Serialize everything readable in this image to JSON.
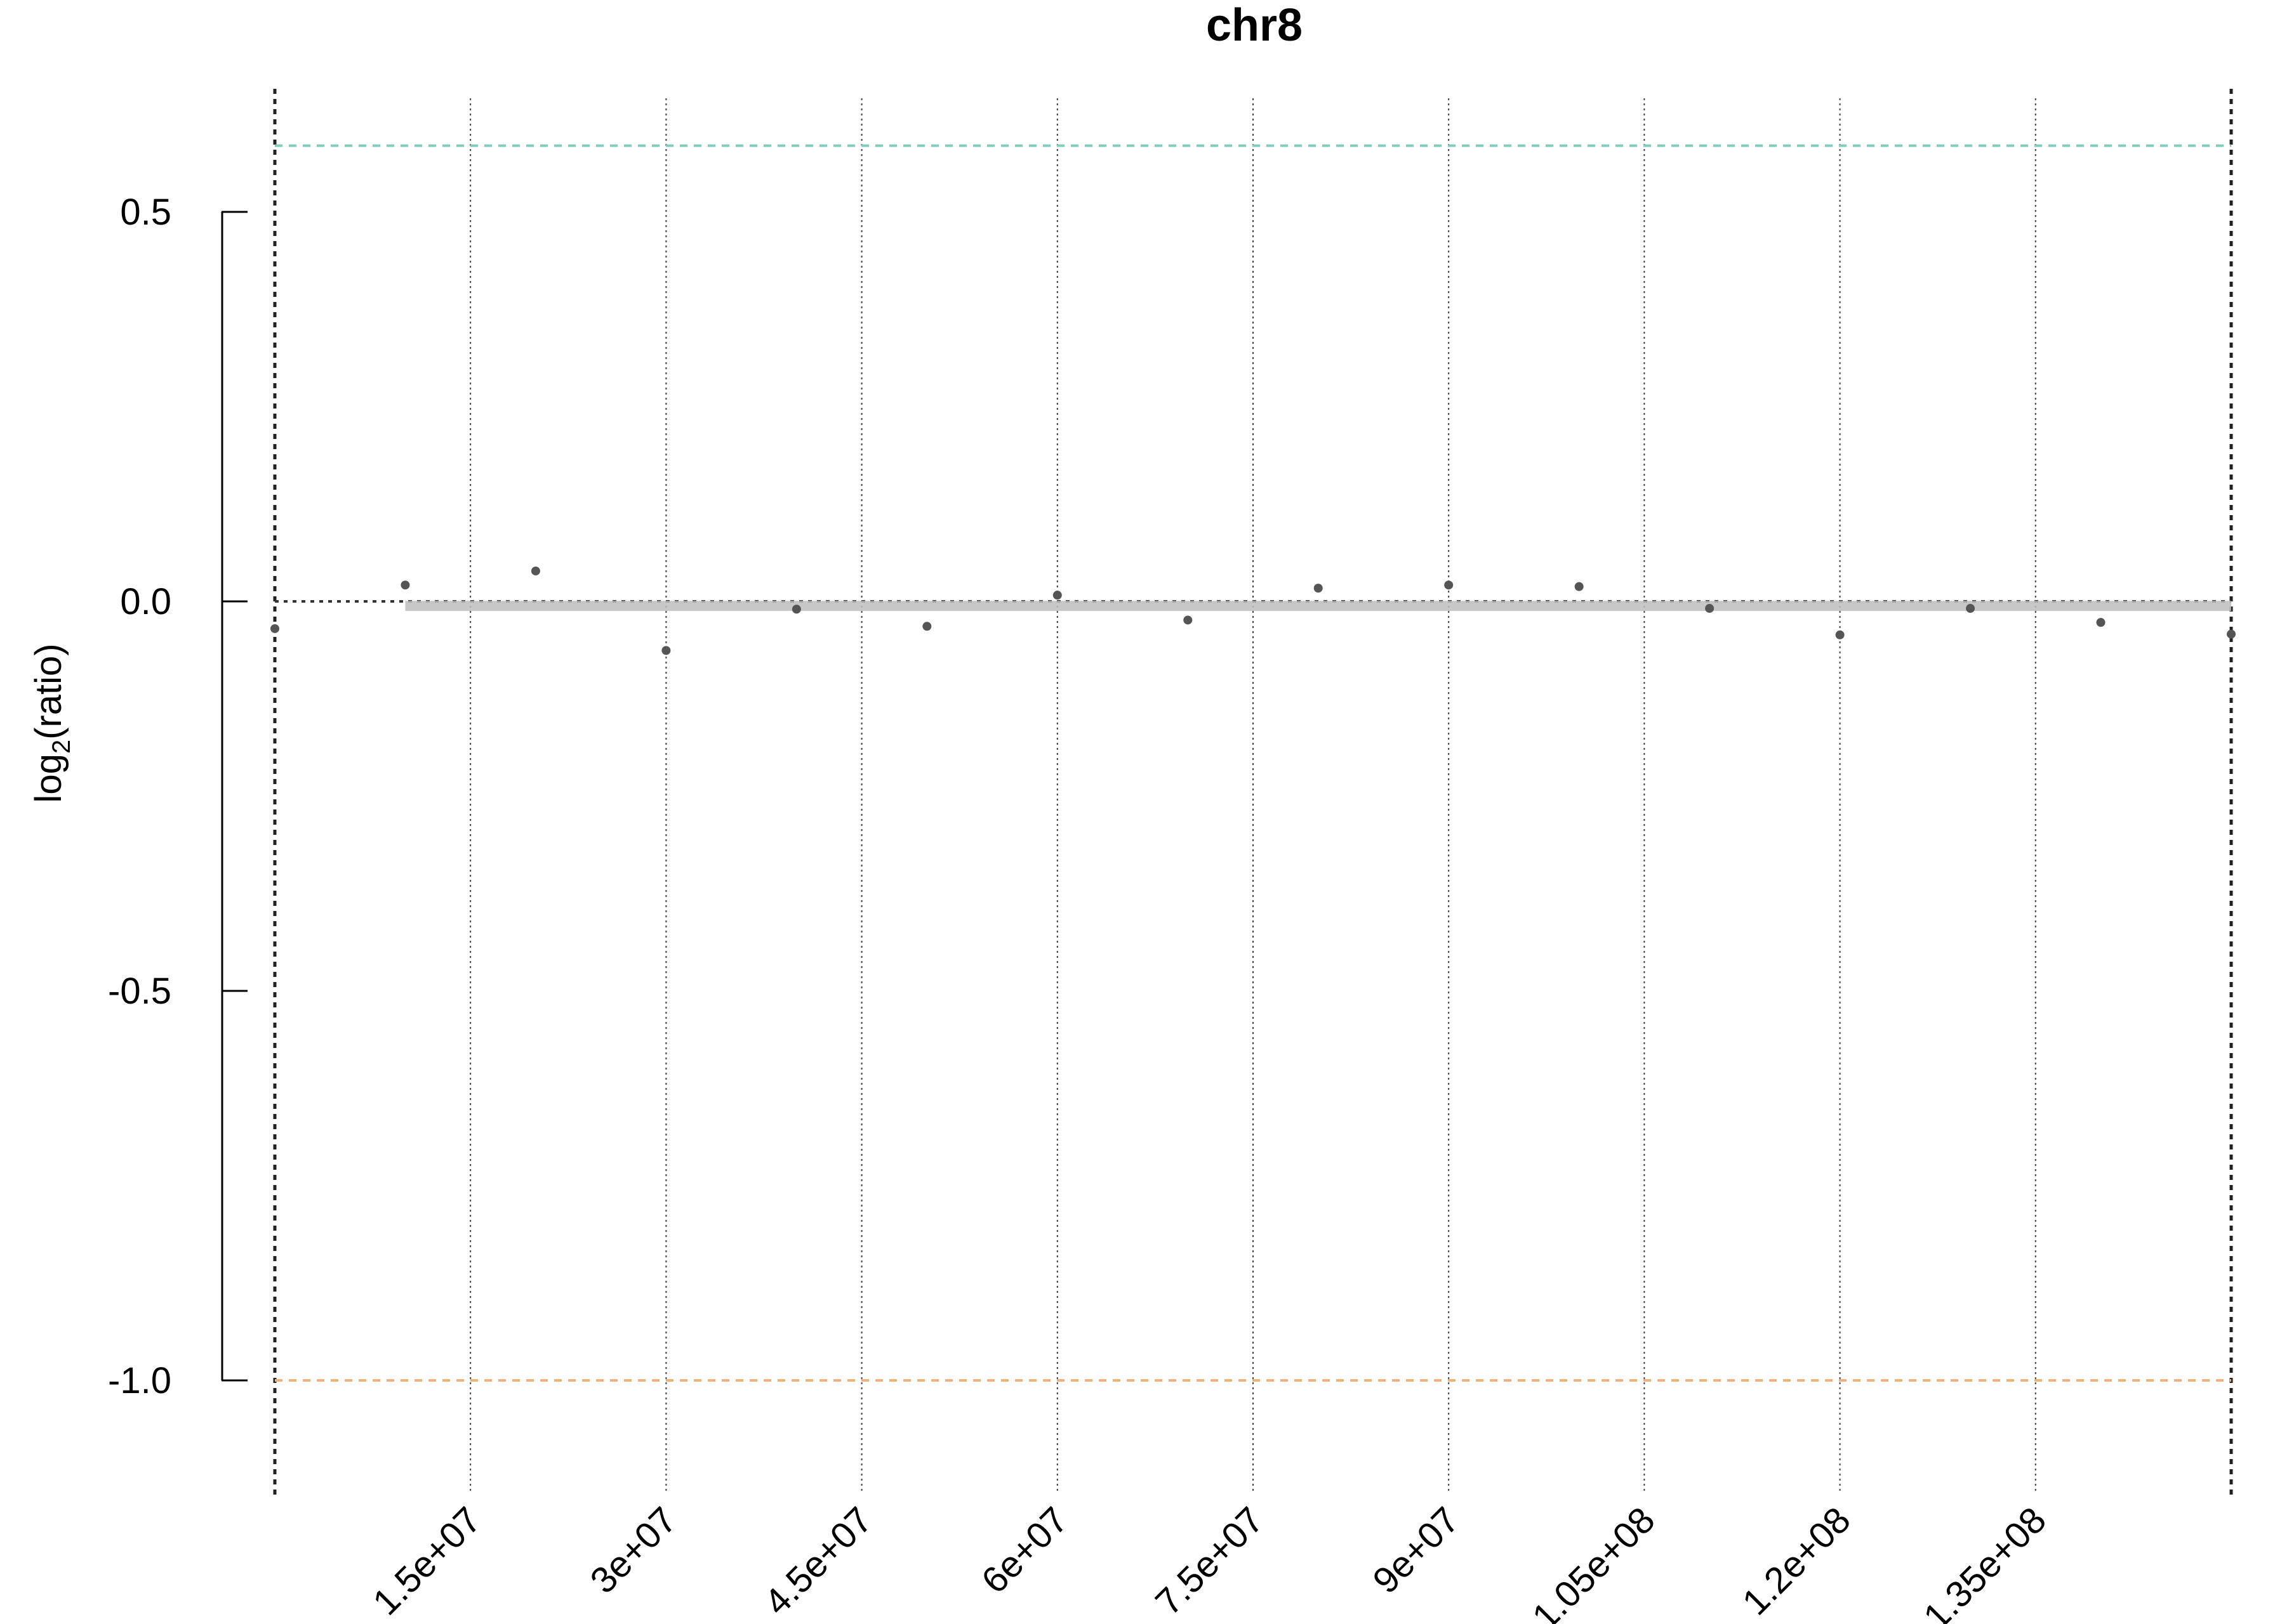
{
  "chart_data": {
    "type": "scatter",
    "title": "chr8",
    "xlabel": "",
    "ylabel": {
      "prefix": "log",
      "subscript": "2",
      "suffix": "(ratio)"
    },
    "xlim": [
      0,
      150000000
    ],
    "ylim": [
      -1.15,
      0.65
    ],
    "x_ticks": [
      {
        "value": 15000000,
        "label": "1.5e+07"
      },
      {
        "value": 30000000,
        "label": "3e+07"
      },
      {
        "value": 45000000,
        "label": "4.5e+07"
      },
      {
        "value": 60000000,
        "label": "6e+07"
      },
      {
        "value": 75000000,
        "label": "7.5e+07"
      },
      {
        "value": 90000000,
        "label": "9e+07"
      },
      {
        "value": 105000000,
        "label": "1.05e+08"
      },
      {
        "value": 120000000,
        "label": "1.2e+08"
      },
      {
        "value": 135000000,
        "label": "1.35e+08"
      }
    ],
    "y_ticks": [
      {
        "value": 0.5,
        "label": "0.5"
      },
      {
        "value": 0.0,
        "label": "0.0"
      },
      {
        "value": -0.5,
        "label": "-0.5"
      },
      {
        "value": -1.0,
        "label": "-1.0"
      }
    ],
    "grid": "vertical dotted lines at x ticks",
    "chromosome_bounds": [
      0,
      150000000
    ],
    "reference_lines": [
      {
        "name": "gain threshold",
        "y": 0.585,
        "color": "#7fcdbb",
        "style": "dashed"
      },
      {
        "name": "zero",
        "y": 0.0,
        "color": "#333333",
        "style": "dotted"
      },
      {
        "name": "loss threshold",
        "y": -1.0,
        "color": "#f0b27a",
        "style": "dashed"
      }
    ],
    "segment": {
      "x_start": 10000000,
      "x_end": 150000000,
      "y": -0.005,
      "color": "#bdbdbd"
    },
    "point_color": "#555555",
    "points": [
      {
        "x": 0,
        "y": -0.035
      },
      {
        "x": 10000000,
        "y": 0.021
      },
      {
        "x": 20000000,
        "y": 0.039
      },
      {
        "x": 30000000,
        "y": -0.063
      },
      {
        "x": 40000000,
        "y": -0.01
      },
      {
        "x": 50000000,
        "y": -0.032
      },
      {
        "x": 60000000,
        "y": 0.008
      },
      {
        "x": 70000000,
        "y": -0.024
      },
      {
        "x": 80000000,
        "y": 0.017
      },
      {
        "x": 90000000,
        "y": 0.021
      },
      {
        "x": 100000000,
        "y": 0.019
      },
      {
        "x": 110000000,
        "y": -0.009
      },
      {
        "x": 120000000,
        "y": -0.043
      },
      {
        "x": 130000000,
        "y": -0.009
      },
      {
        "x": 140000000,
        "y": -0.027
      },
      {
        "x": 150000000,
        "y": -0.042
      }
    ]
  }
}
